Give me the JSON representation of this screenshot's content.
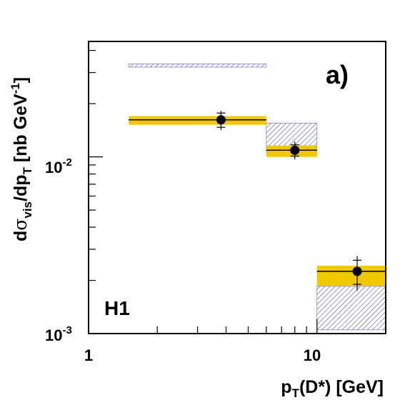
{
  "chart_data": {
    "type": "scatter",
    "panel_label": "a)",
    "experiment_label": "H1",
    "xlabel": "p_T(D*) [GeV]",
    "ylabel": "dσ_vis/dp_T [nb GeV^-1]",
    "xscale": "log",
    "yscale": "log",
    "xlim": [
      1,
      20
    ],
    "ylim": [
      0.001,
      0.045
    ],
    "xticks": [
      {
        "value": 1,
        "label": "1"
      },
      {
        "value": 10,
        "label": "10"
      }
    ],
    "yticks": [
      {
        "value": 0.001,
        "base": "10",
        "exp": "-3"
      },
      {
        "value": 0.01,
        "base": "10",
        "exp": "-2"
      }
    ],
    "grid": false,
    "series": [
      {
        "kind": "data_points",
        "points": [
          {
            "x": 3.8,
            "y": 0.0162,
            "xlow": 1.5,
            "xhigh": 6.0,
            "stat_err": [
              0.0147,
              0.0177
            ],
            "tot_err": [
              0.0142,
              0.0182
            ]
          },
          {
            "x": 8.0,
            "y": 0.0109,
            "xlow": 6.0,
            "xhigh": 10.0,
            "stat_err": [
              0.0101,
              0.0117
            ],
            "tot_err": [
              0.0097,
              0.0122
            ]
          },
          {
            "x": 15.0,
            "y": 0.00225,
            "xlow": 10.0,
            "xhigh": 20.0,
            "stat_err": [
              0.0019,
              0.0026
            ],
            "tot_err": [
              0.00175,
              0.00275
            ]
          }
        ]
      },
      {
        "kind": "yellow_band",
        "color": "#f0c800",
        "bins": [
          {
            "xlow": 1.5,
            "xhigh": 6.0,
            "low": 0.0152,
            "high": 0.017,
            "central": 0.0162
          },
          {
            "xlow": 6.0,
            "xhigh": 10.0,
            "low": 0.01,
            "high": 0.0116,
            "central": 0.0109
          },
          {
            "xlow": 10.0,
            "xhigh": 20.0,
            "low": 0.00186,
            "high": 0.00242,
            "central": 0.00225
          }
        ]
      },
      {
        "kind": "hatched_band",
        "color": "#3a3aa8",
        "bins": [
          {
            "xlow": 1.5,
            "xhigh": 6.0,
            "low": 0.0322,
            "high": 0.0336
          },
          {
            "xlow": 6.0,
            "xhigh": 10.0,
            "low": 0.0106,
            "high": 0.0155
          },
          {
            "xlow": 10.0,
            "xhigh": 20.0,
            "low": 0.00105,
            "high": 0.00185
          }
        ]
      }
    ]
  }
}
